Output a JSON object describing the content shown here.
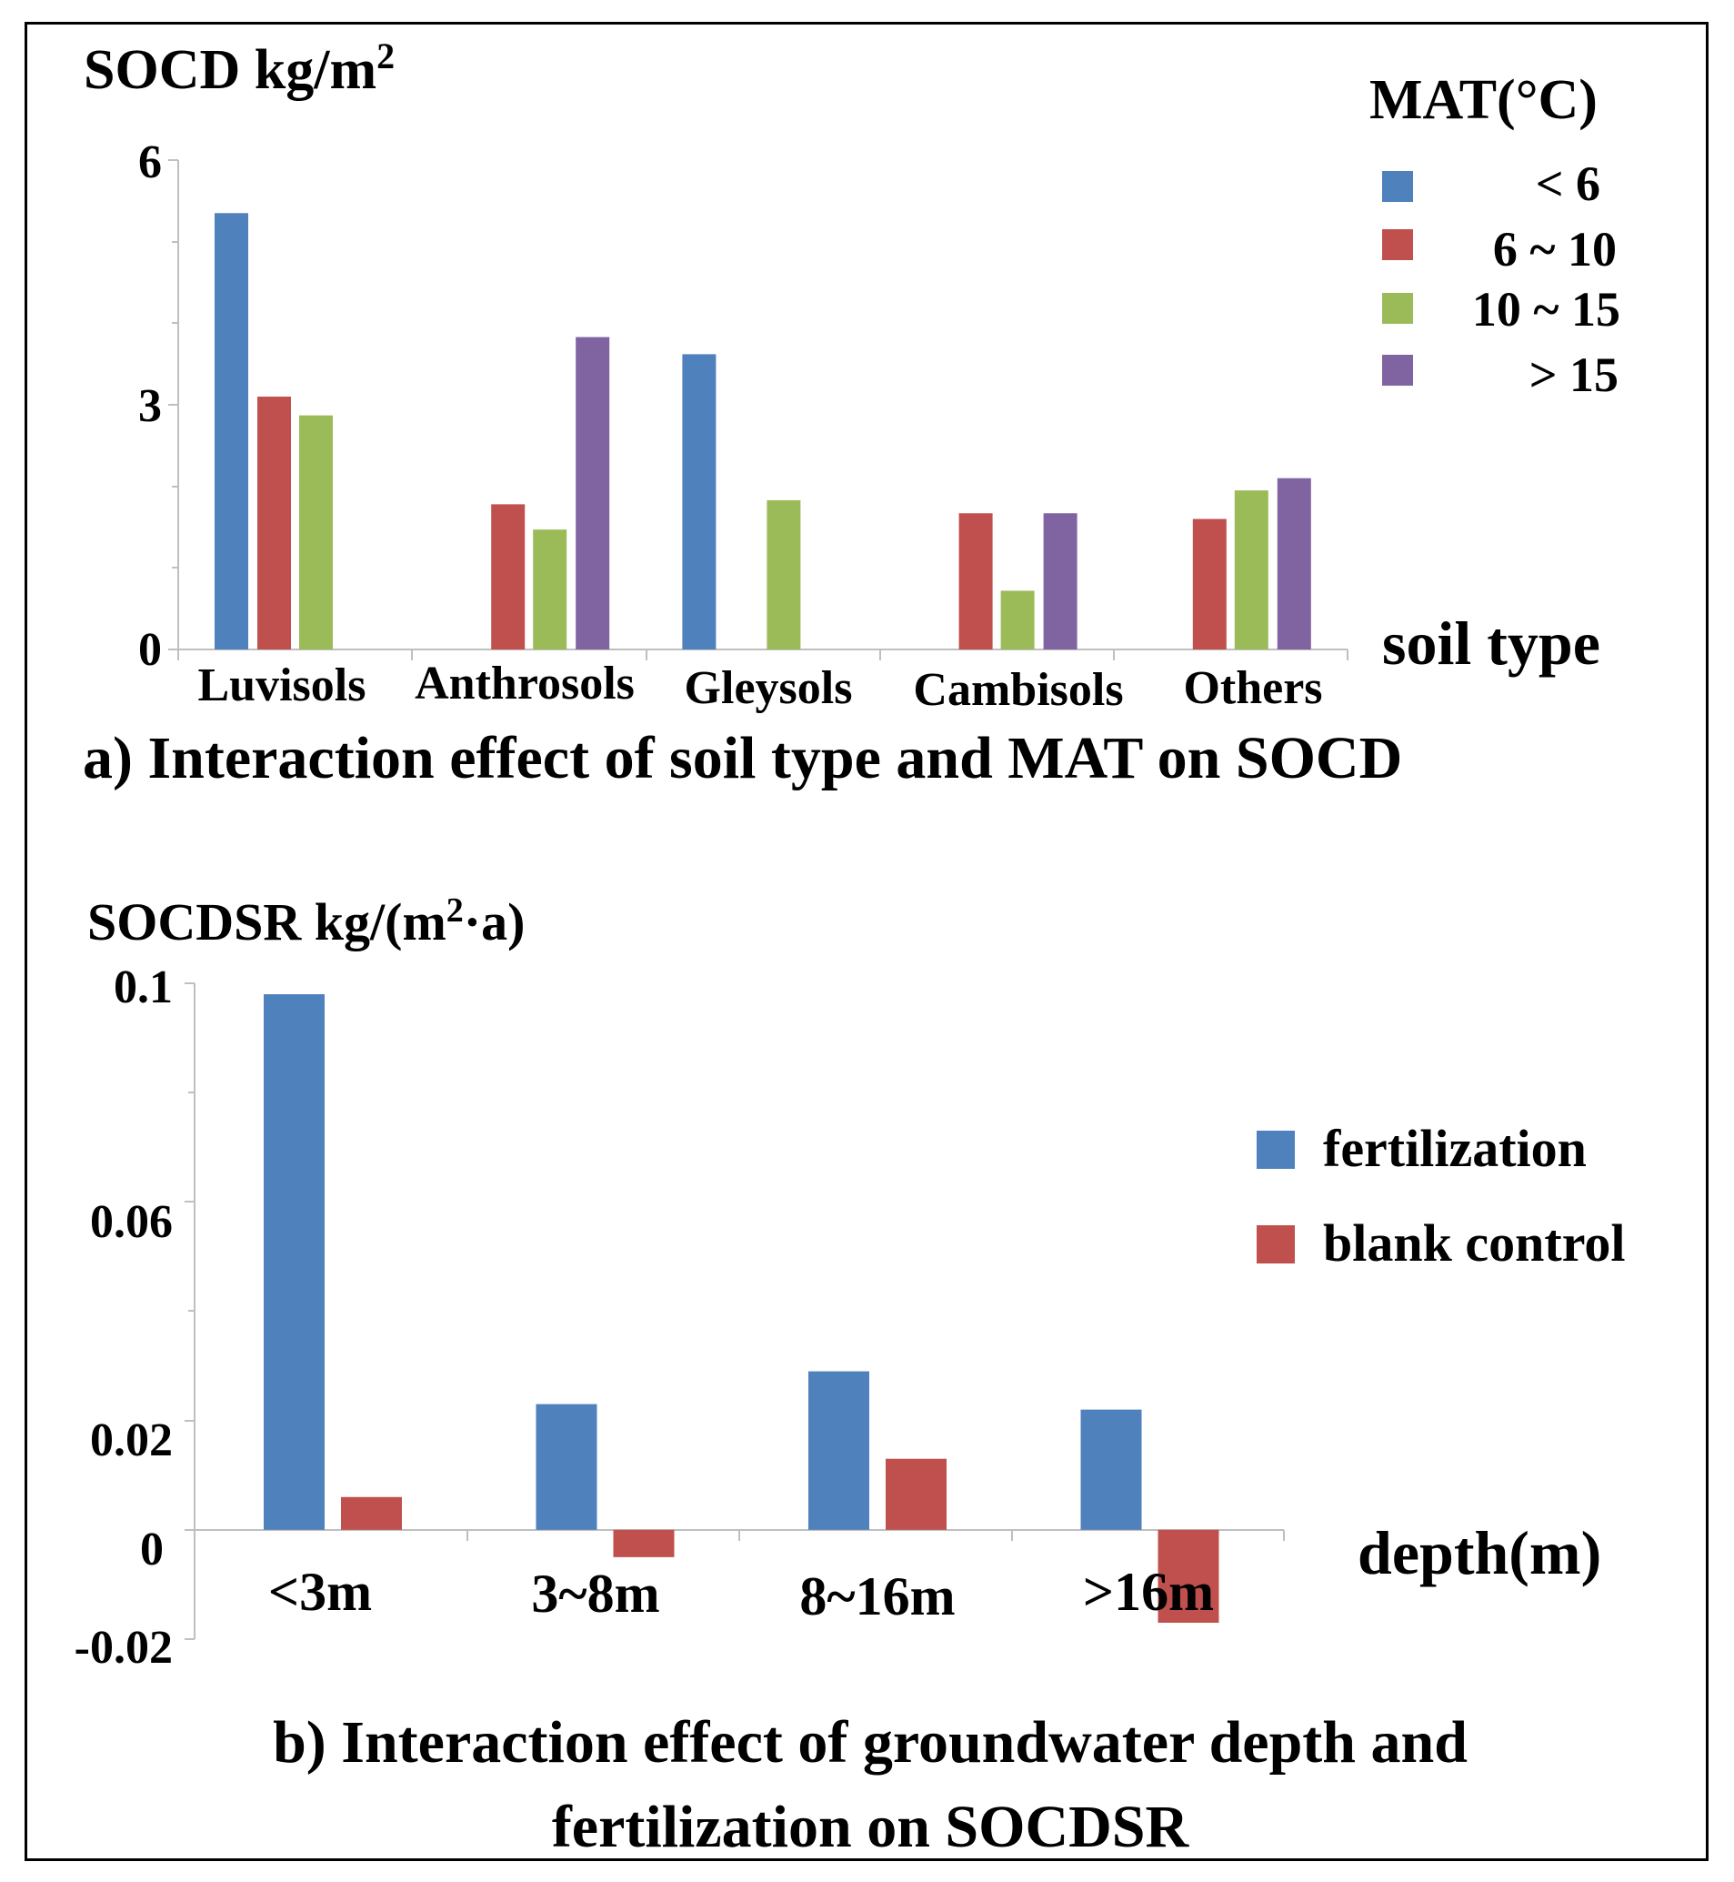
{
  "chart_data": [
    {
      "type": "bar",
      "id": "a",
      "ylabel_main": "SOCD kg/m",
      "ylabel_sup": "2",
      "xlabel": "soil type",
      "caption": "a) Interaction effect of soil type and MAT on SOCD",
      "legend_title": "MAT(°C)",
      "legend_position": "top-right",
      "categories": [
        "Luvisols",
        "Anthrosols",
        "Gleysols",
        "Cambisols",
        "Others"
      ],
      "yticks": [
        "0",
        "3",
        "6"
      ],
      "ytick_values": [
        0,
        3,
        6
      ],
      "ylim": [
        0,
        6
      ],
      "series": [
        {
          "name": "< 6",
          "color": "#4f81bd",
          "values": [
            5.35,
            null,
            3.62,
            null,
            null
          ]
        },
        {
          "name": "6 ~ 10",
          "color": "#c0504d",
          "values": [
            3.1,
            1.78,
            null,
            1.67,
            1.6
          ]
        },
        {
          "name": "10 ~ 15",
          "color": "#9bbb59",
          "values": [
            2.87,
            1.47,
            1.83,
            0.72,
            1.95
          ]
        },
        {
          "name": "> 15",
          "color": "#8064a2",
          "values": [
            null,
            3.83,
            null,
            1.67,
            2.1
          ]
        }
      ]
    },
    {
      "type": "bar",
      "id": "b",
      "ylabel_main": "SOCDSR kg/(m",
      "ylabel_sup": "2",
      "ylabel_end": "·a)",
      "xlabel": "depth(m)",
      "caption_line1": "b) Interaction effect of groundwater depth and",
      "caption_line2": "fertilization on SOCDSR",
      "legend_position": "right",
      "categories": [
        "<3m",
        "3~8m",
        "8~16m",
        ">16m"
      ],
      "yticks": [
        "-0.02",
        "0",
        "0.02",
        "0.06",
        "0.1"
      ],
      "ytick_values": [
        -0.02,
        0,
        0.02,
        0.06,
        0.1
      ],
      "ylim": [
        -0.02,
        0.1
      ],
      "series": [
        {
          "name": "fertilization",
          "color": "#4f81bd",
          "values": [
            0.098,
            0.023,
            0.029,
            0.022
          ]
        },
        {
          "name": "blank control",
          "color": "#c0504d",
          "values": [
            0.006,
            -0.005,
            0.013,
            -0.017
          ]
        }
      ]
    }
  ]
}
